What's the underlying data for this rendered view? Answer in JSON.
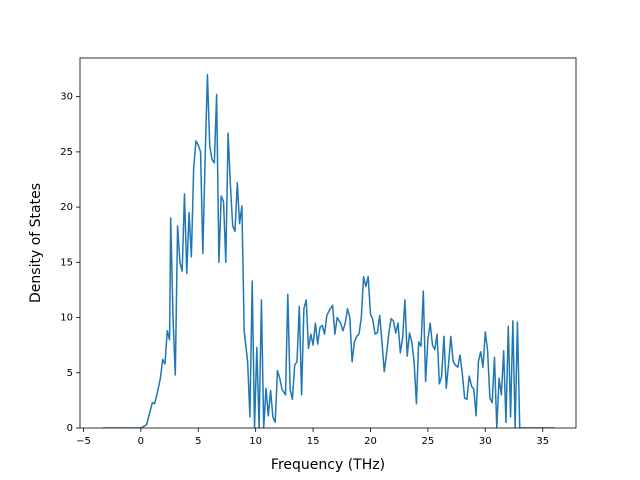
{
  "chart_data": {
    "type": "line",
    "xlabel": "Frequency (THz)",
    "ylabel": "Density of States",
    "x": [
      -3.3,
      0,
      0.5,
      0.8,
      1.0,
      1.2,
      1.5,
      1.7,
      1.9,
      2.1,
      2.3,
      2.5,
      2.6,
      2.8,
      3.0,
      3.2,
      3.4,
      3.6,
      3.8,
      4.0,
      4.2,
      4.4,
      4.6,
      4.8,
      5.0,
      5.2,
      5.4,
      5.6,
      5.8,
      6.0,
      6.2,
      6.4,
      6.6,
      6.8,
      7.0,
      7.2,
      7.4,
      7.6,
      7.8,
      8.0,
      8.2,
      8.4,
      8.6,
      8.8,
      9.0,
      9.3,
      9.5,
      9.7,
      9.9,
      10.1,
      10.3,
      10.5,
      10.7,
      10.9,
      11.1,
      11.3,
      11.5,
      11.7,
      11.9,
      12.1,
      12.3,
      12.6,
      12.8,
      13.0,
      13.2,
      13.4,
      13.6,
      13.8,
      14.0,
      14.2,
      14.4,
      14.6,
      14.8,
      15.0,
      15.2,
      15.4,
      15.6,
      15.8,
      16.0,
      16.2,
      16.5,
      16.7,
      16.9,
      17.1,
      17.4,
      17.6,
      17.8,
      18.0,
      18.2,
      18.4,
      18.6,
      18.8,
      19.0,
      19.2,
      19.4,
      19.6,
      19.8,
      20.0,
      20.2,
      20.4,
      20.6,
      20.8,
      21.0,
      21.2,
      21.4,
      21.6,
      21.8,
      22.0,
      22.2,
      22.4,
      22.6,
      22.8,
      23.0,
      23.2,
      23.4,
      23.6,
      23.8,
      24.0,
      24.2,
      24.4,
      24.6,
      24.8,
      25.0,
      25.2,
      25.4,
      25.6,
      25.8,
      26.0,
      26.2,
      26.4,
      26.6,
      26.8,
      27.0,
      27.2,
      27.4,
      27.6,
      27.8,
      28.0,
      28.2,
      28.4,
      28.6,
      28.8,
      29.0,
      29.2,
      29.4,
      29.6,
      29.8,
      30.0,
      30.2,
      30.4,
      30.6,
      30.8,
      31.0,
      31.2,
      31.4,
      31.6,
      31.8,
      32.0,
      32.2,
      32.4,
      32.6,
      32.8,
      33.0,
      33.2,
      36.0
    ],
    "series": [
      {
        "color": "#1f77b4",
        "values": [
          0,
          0,
          0.3,
          1.5,
          2.3,
          2.2,
          3.5,
          4.5,
          6.2,
          5.8,
          8.8,
          8,
          19,
          10,
          4.8,
          18.3,
          15,
          14.2,
          21.2,
          14,
          19.5,
          15.5,
          23.5,
          26,
          25.6,
          25,
          15.8,
          24.5,
          32,
          25.5,
          24.3,
          24,
          30.2,
          15,
          21,
          20.5,
          15,
          26.7,
          22,
          18.3,
          17.8,
          22.2,
          18.5,
          20.1,
          8.8,
          6,
          1,
          13.3,
          0,
          7.3,
          0,
          11.6,
          0,
          3.6,
          1.1,
          3.4,
          1,
          0.5,
          5.2,
          4.5,
          3.5,
          3,
          12.1,
          3.5,
          2.6,
          5.7,
          6,
          11,
          3,
          10.8,
          11.6,
          7.2,
          8.5,
          7.5,
          9.5,
          7.6,
          9.1,
          9.3,
          8.5,
          10.2,
          10.8,
          11.1,
          8.5,
          10,
          9.5,
          8.8,
          9.5,
          10.8,
          10,
          6,
          7.8,
          8.3,
          8.5,
          10,
          13.7,
          12.8,
          13.7,
          10.3,
          9.8,
          8.5,
          8.6,
          10.2,
          7.8,
          5.1,
          6.7,
          8.6,
          9.9,
          9.7,
          8.6,
          9.5,
          6.8,
          8.2,
          11.6,
          6.5,
          8.6,
          7.8,
          6,
          2.2,
          7.8,
          7.4,
          12.4,
          4.2,
          8,
          9.5,
          7.5,
          7.1,
          8.5,
          4,
          4.7,
          8.3,
          3.6,
          5.8,
          8.3,
          6,
          5.7,
          5.5,
          6.6,
          4.9,
          2.7,
          2.6,
          4.7,
          3.8,
          3.5,
          1.1,
          6,
          6.9,
          5.5,
          8.7,
          7,
          2.7,
          2.3,
          6.4,
          0,
          4.5,
          3,
          7,
          0.5,
          9.2,
          1,
          9.7,
          0,
          9.6,
          0,
          0,
          0
        ]
      }
    ],
    "xlim": [
      -5.3,
      37.9
    ],
    "ylim": [
      0,
      33.5
    ],
    "xticks": [
      {
        "value": -5,
        "label": "−5"
      },
      0,
      5,
      10,
      15,
      20,
      25,
      30,
      35
    ],
    "yticks": [
      0,
      5,
      10,
      15,
      20,
      25,
      30
    ]
  }
}
